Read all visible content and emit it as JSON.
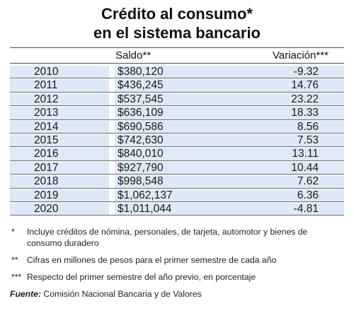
{
  "chart_data": {
    "type": "table",
    "title_lines": [
      "Crédito al consumo*",
      "en el sistema bancario"
    ],
    "columns": [
      "",
      "Saldo**",
      "Variación***"
    ],
    "rows": [
      {
        "year": "2010",
        "saldo": "$380,120",
        "variacion": "-9.32"
      },
      {
        "year": "2011",
        "saldo": "$436,245",
        "variacion": "14.76"
      },
      {
        "year": "2012",
        "saldo": "$537,545",
        "variacion": "23.22"
      },
      {
        "year": "2013",
        "saldo": "$636,109",
        "variacion": "18.33"
      },
      {
        "year": "2014",
        "saldo": "$690,586",
        "variacion": "8.56"
      },
      {
        "year": "2015",
        "saldo": "$742,630",
        "variacion": "7.53"
      },
      {
        "year": "2016",
        "saldo": "$840,010",
        "variacion": "13.11"
      },
      {
        "year": "2017",
        "saldo": "$927,790",
        "variacion": "10.44"
      },
      {
        "year": "2018",
        "saldo": "$998,548",
        "variacion": "7.62"
      },
      {
        "year": "2019",
        "saldo": "$1,062,137",
        "variacion": "6.36"
      },
      {
        "year": "2020",
        "saldo": "$1,011,044",
        "variacion": "-4.81"
      }
    ],
    "notes": [
      {
        "mark": "*",
        "text": "Incluye créditos de nómina, personales, de tarjeta, automotor y bienes de consumo duradero"
      },
      {
        "mark": "**",
        "text": "Cifras en millones de pesos para el primer semestre de cada año"
      },
      {
        "mark": "***",
        "text": "Respecto del primer semestre del año previo, en porcentaje"
      }
    ],
    "source_label": "Fuente:",
    "source_text": "Comisión Nacional Bancaria y de Valores",
    "colors": {
      "band": "#dde9f6",
      "rule": "#6c6c6c",
      "text": "#1a1a1a"
    }
  }
}
